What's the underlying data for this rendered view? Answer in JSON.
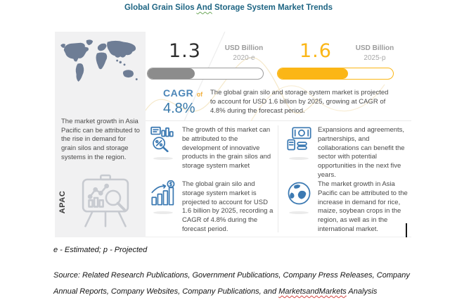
{
  "title": {
    "part1": "Global Grain Silos ",
    "underlined_word": "And",
    "part2": " Storage System Market Trends"
  },
  "colors": {
    "title_teal": "#1E6583",
    "accent_yellow": "#FBB616",
    "bar_gray": "#8C8C8C",
    "cagr_blue": "#3577A9",
    "icon_blue": "#3B79B2",
    "map_slate": "#6E7D95",
    "panel_gray": "#F1F1F2"
  },
  "left_panel": {
    "map_icon": "world-map",
    "text": "The market growth in Asia Pacific can be attributed to the rise in demand for grain silos and storage systems in the region.",
    "region_label": "APAC",
    "region_icon": "presentation-chart-magnifier"
  },
  "stats": {
    "current": {
      "value": "1.3",
      "unit": "USD Billion",
      "year": "2020-e",
      "fill_pct": 41
    },
    "projected": {
      "value": "1.6",
      "unit": "USD Billion",
      "year": "2025-p",
      "fill_pct": 61
    },
    "cagr": {
      "label": "CAGR",
      "of": "of",
      "value": "4.8%"
    },
    "summary": "The global grain silo and storage system market is projected to account for USD 1.6 billion by 2025, growing at CAGR of 4.8% during the forecast period."
  },
  "insights": [
    {
      "icon": "market-analysis-icon",
      "text": "The growth of this market can be attributed to the development of innovative products in the grain silos and storage system market"
    },
    {
      "icon": "money-investment-icon",
      "text": "Expansions and agreements, partnerships, and collaborations can benefit the sector with potential opportunities in the next five years."
    },
    {
      "icon": "growth-bars-dollar-icon",
      "text": "The global grain silo and storage system market is projected to account for USD 1.6 billion by 2025, recording a CAGR of 4.8% during the forecast period."
    },
    {
      "icon": "globe-icon",
      "text": "The market growth in Asia Pacific can be attributed to the increase in demand for rice, maize, soybean crops in the region, as well as in the international market."
    }
  ],
  "footnote": "e - Estimated; p - Projected",
  "source": {
    "part1": "Source: Related Research Publications, Government Publications, Company Press Releases, Company Annual Reports, Company Websites, Company Publications, and ",
    "underlined_word": "MarketsandMarkets",
    "part2": " Analysis"
  },
  "chart_data": {
    "type": "bar",
    "title": "Global Grain Silos And Storage System Market Trends",
    "categories": [
      "2020-e",
      "2025-p"
    ],
    "values": [
      1.3,
      1.6
    ],
    "ylabel": "USD Billion",
    "cagr": "4.8%",
    "region_highlight": "APAC",
    "legend_position": "none",
    "grid": false
  }
}
